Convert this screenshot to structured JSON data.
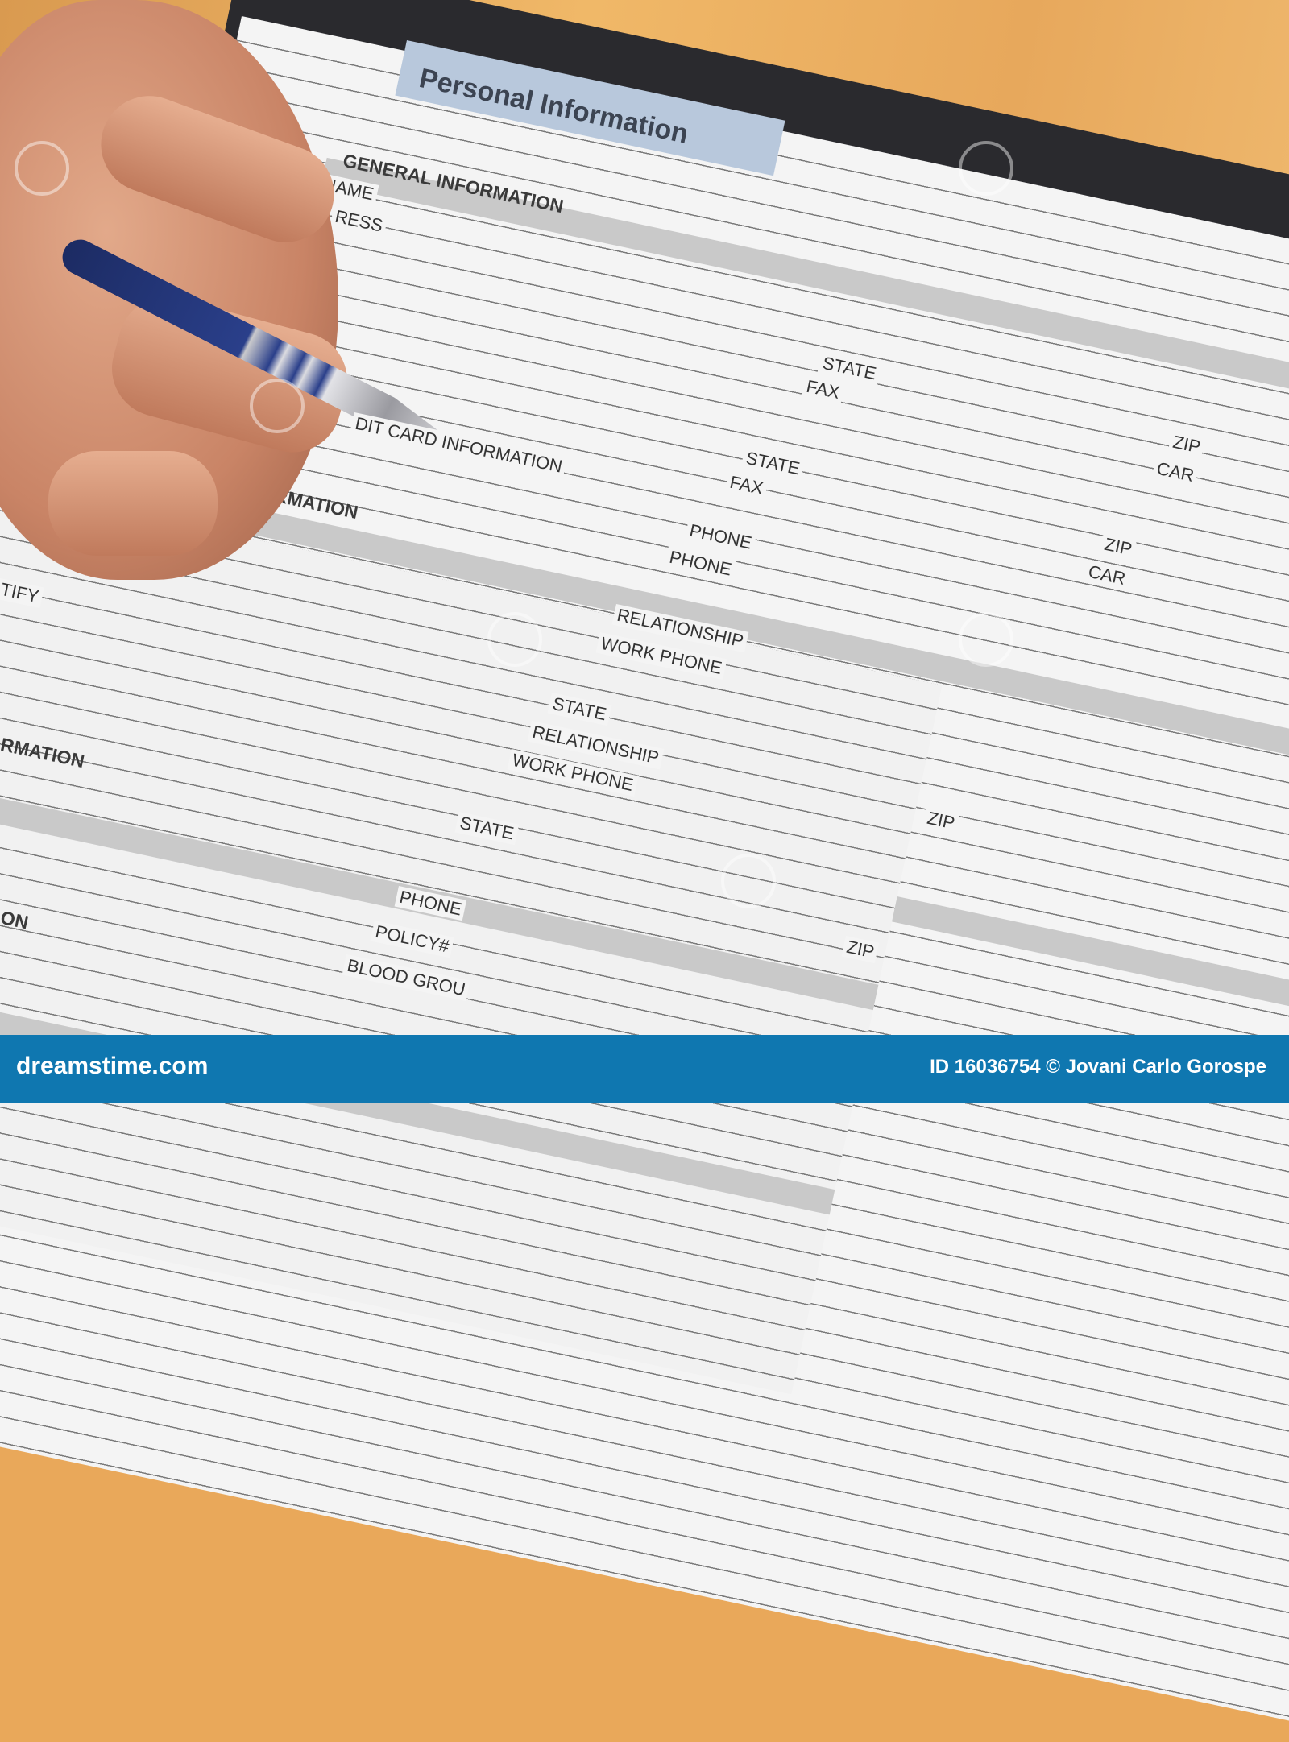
{
  "form": {
    "title": "Personal Information",
    "sections": [
      "GENERAL INFORMATION",
      "DIT CARD INFORMATION",
      "Y INFORMATION",
      "RMATION",
      "ON"
    ],
    "fields": [
      "NAME",
      "RESS",
      "STATE",
      "FAX",
      "ZIP",
      "CAR",
      "STATE",
      "FAX",
      "PHONE",
      "PHONE",
      "ZIP",
      "CAR",
      "TIFY",
      "RELATIONSHIP",
      "WORK PHONE",
      "STATE",
      "RELATIONSHIP",
      "WORK PHONE",
      "ZIP",
      "STATE",
      "PHONE",
      "POLICY#",
      "ZIP",
      "BLOOD GROU"
    ]
  },
  "footer": {
    "logo": "dreamstime.com",
    "credit": "ID 16036754 © Jovani Carlo Gorospe"
  },
  "colors": {
    "footer": "#0f77b0",
    "title_box": "#b8c8dc",
    "wood": "#e9a85a"
  }
}
